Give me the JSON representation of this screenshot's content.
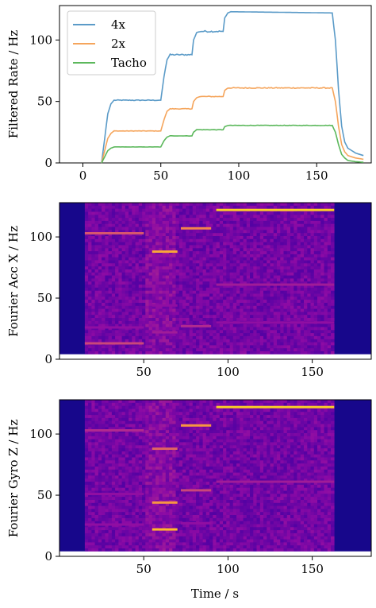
{
  "chart_data": [
    {
      "type": "line",
      "ylabel": "Filtered Rate / Hz",
      "xlim": [
        -15,
        185
      ],
      "ylim": [
        0,
        128
      ],
      "xticks": [
        0,
        50,
        100,
        150
      ],
      "yticks": [
        0,
        50,
        100
      ],
      "legend": "top-left",
      "series": [
        {
          "name": "4x",
          "color": "#5b9bc8",
          "x": [
            12,
            14,
            16,
            18,
            20,
            50,
            52,
            54,
            56,
            70,
            71,
            73,
            75,
            90,
            91,
            93,
            95,
            160,
            162,
            164,
            166,
            168,
            170,
            175,
            180
          ],
          "y": [
            0,
            20,
            40,
            48,
            51,
            51,
            70,
            84,
            88,
            88,
            100,
            106,
            107,
            107,
            118,
            122,
            123,
            122,
            100,
            60,
            30,
            17,
            12,
            8,
            6
          ]
        },
        {
          "name": "2x",
          "color": "#f5a55c",
          "x": [
            12,
            14,
            16,
            18,
            20,
            50,
            52,
            54,
            56,
            70,
            71,
            73,
            75,
            90,
            91,
            93,
            95,
            160,
            162,
            164,
            166,
            168,
            170,
            175,
            180
          ],
          "y": [
            0,
            10,
            20,
            24,
            26,
            26,
            35,
            42,
            44,
            44,
            50,
            53,
            54,
            54,
            59,
            61,
            61,
            61,
            50,
            30,
            15,
            9,
            6,
            4,
            3
          ]
        },
        {
          "name": "Tacho",
          "color": "#5cb85c",
          "x": [
            12,
            14,
            16,
            18,
            20,
            50,
            52,
            54,
            56,
            70,
            71,
            73,
            75,
            90,
            91,
            93,
            95,
            160,
            162,
            164,
            166,
            168,
            170,
            175,
            180
          ],
          "y": [
            0,
            5,
            10,
            12,
            13,
            13,
            18,
            21,
            22,
            22,
            25,
            27,
            27,
            27,
            29.5,
            30.5,
            30.5,
            30.5,
            25,
            15,
            7,
            4,
            2,
            1,
            0.5
          ]
        }
      ]
    },
    {
      "type": "heatmap",
      "ylabel": "Fourier Acc X / Hz",
      "xlim": [
        0,
        185
      ],
      "ylim": [
        0,
        128
      ],
      "xticks": [
        50,
        100,
        150
      ],
      "yticks": [
        0,
        50,
        100
      ],
      "colormap": "plasma",
      "x_active": [
        15,
        163
      ],
      "bright_lines": [
        {
          "t0": 15,
          "t1": 50,
          "f": 103,
          "level": 0.55
        },
        {
          "t0": 15,
          "t1": 50,
          "f": 13,
          "level": 0.5
        },
        {
          "t0": 15,
          "t1": 50,
          "f": 26,
          "level": 0.3
        },
        {
          "t0": 55,
          "t1": 70,
          "f": 88,
          "level": 0.8
        },
        {
          "t0": 55,
          "t1": 70,
          "f": 22,
          "level": 0.35
        },
        {
          "t0": 55,
          "t1": 70,
          "f": 44,
          "level": 0.3
        },
        {
          "t0": 72,
          "t1": 90,
          "f": 107,
          "level": 0.7
        },
        {
          "t0": 72,
          "t1": 90,
          "f": 27,
          "level": 0.4
        },
        {
          "t0": 93,
          "t1": 163,
          "f": 122,
          "level": 0.9
        },
        {
          "t0": 93,
          "t1": 163,
          "f": 61,
          "level": 0.35
        },
        {
          "t0": 93,
          "t1": 163,
          "f": 30,
          "level": 0.3
        }
      ]
    },
    {
      "type": "heatmap",
      "ylabel": "Fourier Gyro Z / Hz",
      "xlabel": "Time / s",
      "xlim": [
        0,
        185
      ],
      "ylim": [
        0,
        128
      ],
      "xticks": [
        50,
        100,
        150
      ],
      "yticks": [
        0,
        50,
        100
      ],
      "colormap": "plasma",
      "x_active": [
        15,
        163
      ],
      "bright_lines": [
        {
          "t0": 15,
          "t1": 50,
          "f": 103,
          "level": 0.4
        },
        {
          "t0": 15,
          "t1": 50,
          "f": 51,
          "level": 0.3
        },
        {
          "t0": 15,
          "t1": 50,
          "f": 26,
          "level": 0.3
        },
        {
          "t0": 55,
          "t1": 70,
          "f": 88,
          "level": 0.6
        },
        {
          "t0": 55,
          "t1": 70,
          "f": 44,
          "level": 0.75
        },
        {
          "t0": 55,
          "t1": 70,
          "f": 22,
          "level": 0.85
        },
        {
          "t0": 72,
          "t1": 90,
          "f": 107,
          "level": 0.75
        },
        {
          "t0": 72,
          "t1": 90,
          "f": 54,
          "level": 0.5
        },
        {
          "t0": 72,
          "t1": 90,
          "f": 27,
          "level": 0.3
        },
        {
          "t0": 93,
          "t1": 163,
          "f": 122,
          "level": 0.9
        },
        {
          "t0": 93,
          "t1": 163,
          "f": 61,
          "level": 0.35
        }
      ]
    }
  ]
}
